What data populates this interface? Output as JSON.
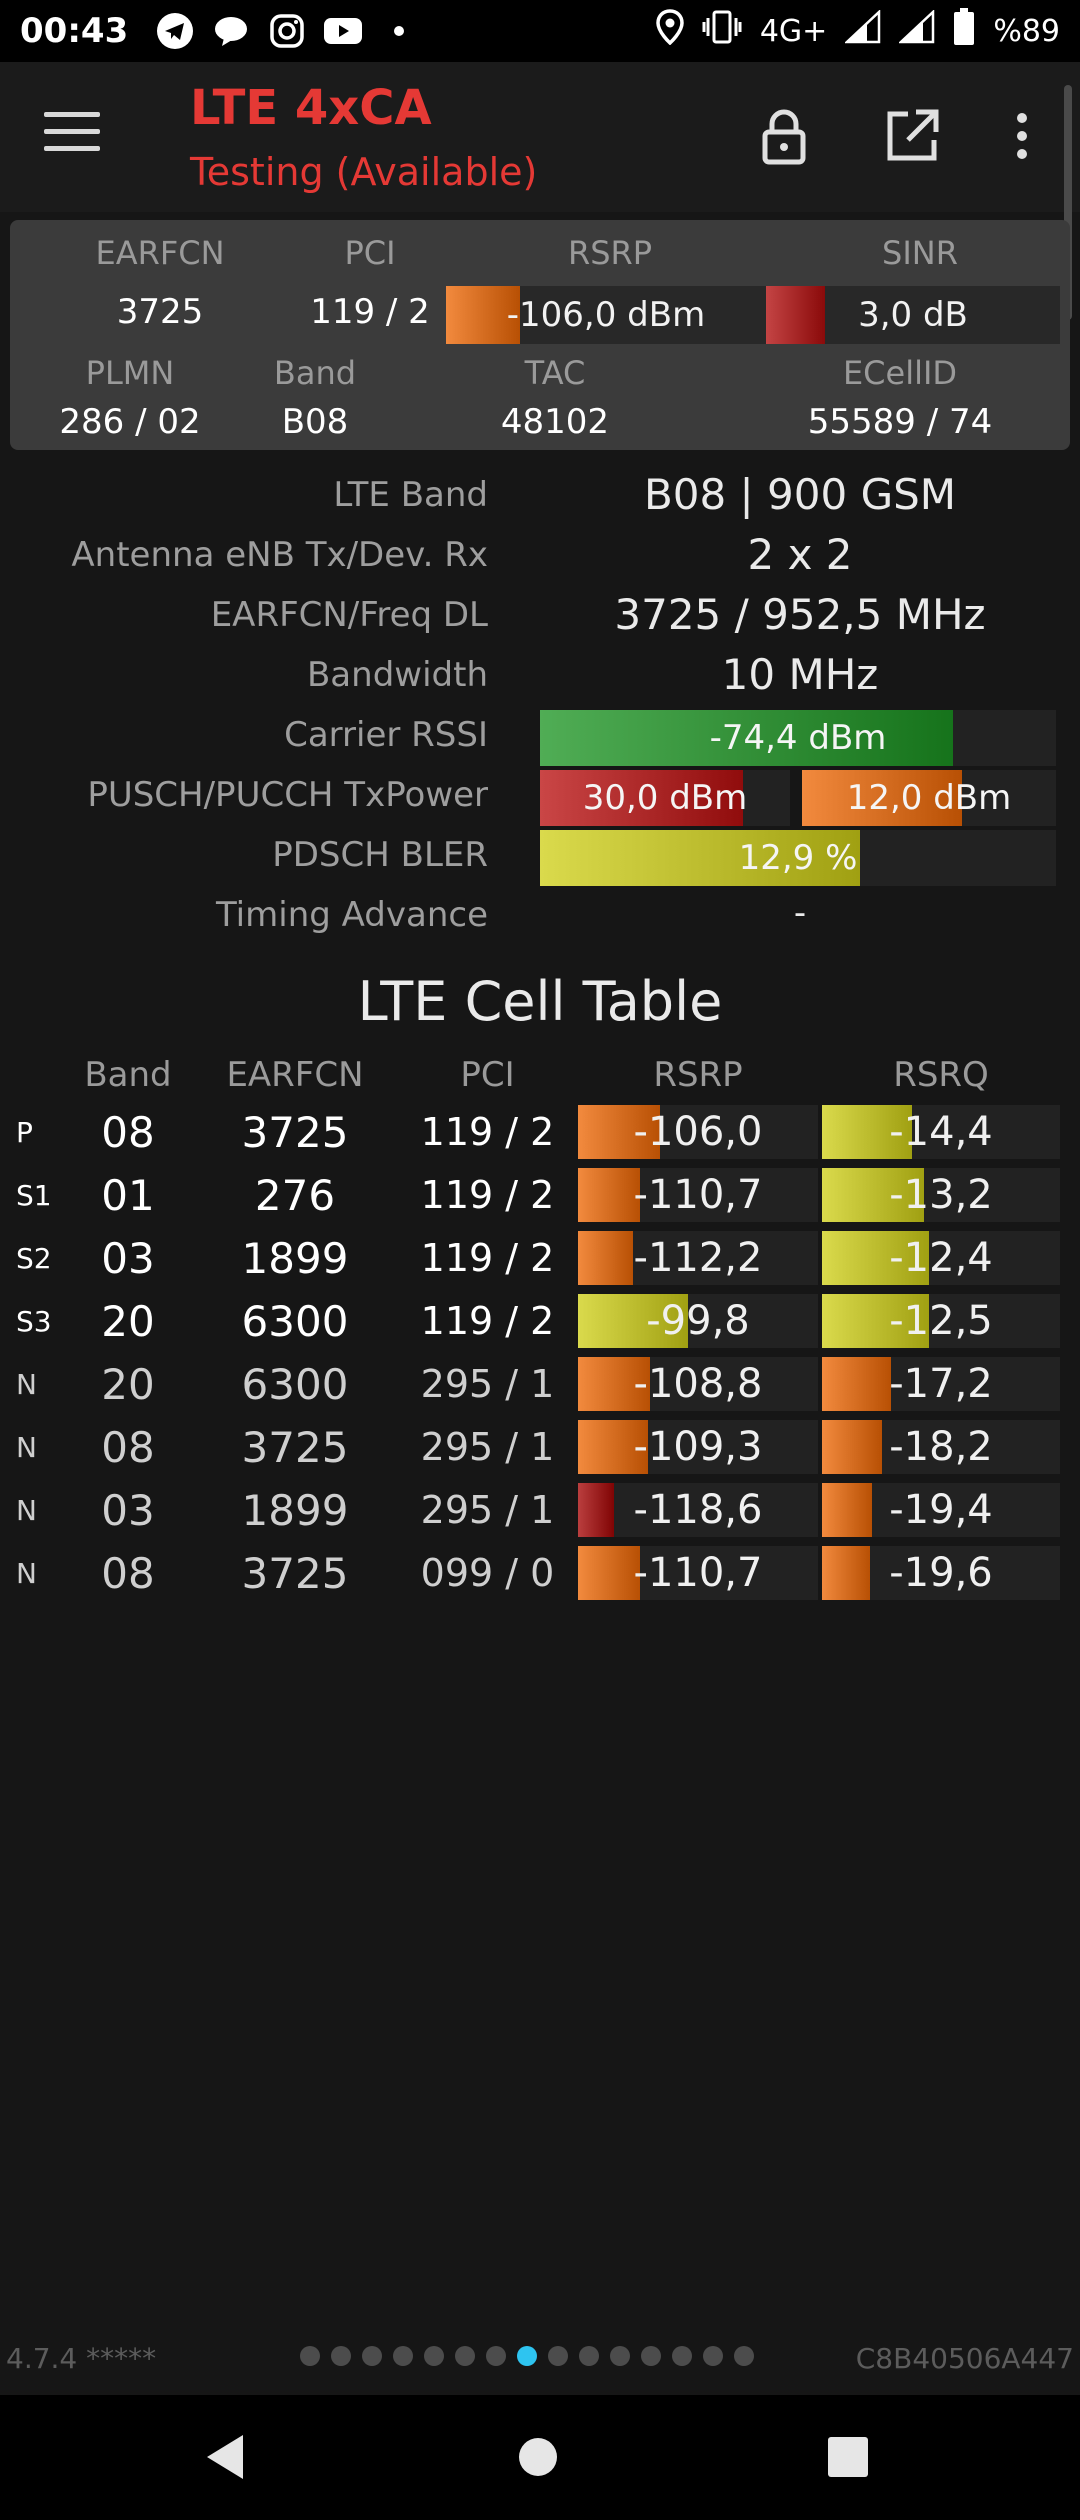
{
  "status_bar": {
    "time": "00:43",
    "network": "4G+",
    "battery": "%89",
    "left_icons": [
      "telegram-icon",
      "chat-bubble-icon",
      "instagram-icon",
      "youtube-icon",
      "dot-icon"
    ],
    "right_icons": [
      "location-icon",
      "vibrate-icon",
      "signal-icon",
      "signal-icon",
      "battery-icon"
    ]
  },
  "app_bar": {
    "title": "LTE 4xCA",
    "subtitle": "Testing (Available)",
    "title_color": "#e53935",
    "actions": [
      "lock-icon",
      "open-external-icon",
      "more-vert-icon"
    ]
  },
  "summary": {
    "labels": {
      "earfcn": "EARFCN",
      "pci": "PCI",
      "rsrp": "RSRP",
      "sinr": "SINR",
      "plmn": "PLMN",
      "band": "Band",
      "tac": "TAC",
      "ecellid": "ECellID"
    },
    "earfcn": "3725",
    "pci": "119 / 2",
    "rsrp": {
      "text": "-106,0 dBm",
      "level": 0.23,
      "color": "#e0782c"
    },
    "sinr": {
      "text": "3,0 dB",
      "level": 0.2,
      "color": "#b23232"
    },
    "plmn": "286 / 02",
    "band": "B08",
    "tac": "48102",
    "ecellid": "55589 / 74"
  },
  "details": {
    "lte_band": {
      "label": "LTE Band",
      "value": "B08 | 900 GSM"
    },
    "antenna": {
      "label": "Antenna eNB Tx/Dev. Rx",
      "value": "2 x 2"
    },
    "earfcn_freq": {
      "label": "EARFCN/Freq DL",
      "value": "3725 / 952,5 MHz"
    },
    "bandwidth": {
      "label": "Bandwidth",
      "value": "10 MHz"
    },
    "carrier_rssi": {
      "label": "Carrier RSSI",
      "text": "-74,4 dBm",
      "level": 0.8,
      "color": "#3e9b43"
    },
    "tx_power": {
      "label": "PUSCH/PUCCH TxPower",
      "pusch": {
        "text": "30,0 dBm",
        "level": 0.81,
        "color": "#b83434"
      },
      "pucch": {
        "text": "12,0 dBm",
        "level": 0.63,
        "color": "#e0782c"
      }
    },
    "bler": {
      "label": "PDSCH BLER",
      "text": "12,9 %",
      "level": 0.62,
      "color": "#c8c83a"
    },
    "timing_advance": {
      "label": "Timing Advance",
      "value": "-"
    }
  },
  "cell_table": {
    "title": "LTE Cell Table",
    "headers": {
      "band": "Band",
      "earfcn": "EARFCN",
      "pci": "PCI",
      "rsrp": "RSRP",
      "rsrq": "RSRQ"
    },
    "rows": [
      {
        "type": "P",
        "band": "08",
        "earfcn": "3725",
        "pci": "119 / 2",
        "rsrp": "-106,0",
        "rsrp_level": 0.34,
        "rsrp_color": "#e0782c",
        "rsrq": "-14,4",
        "rsrq_level": 0.38,
        "rsrq_color": "#c8c83a",
        "neighbor": false
      },
      {
        "type": "S1",
        "band": "01",
        "earfcn": "276",
        "pci": "119 / 2",
        "rsrp": "-110,7",
        "rsrp_level": 0.26,
        "rsrp_color": "#e0782c",
        "rsrq": "-13,2",
        "rsrq_level": 0.43,
        "rsrq_color": "#c8c83a",
        "neighbor": false
      },
      {
        "type": "S2",
        "band": "03",
        "earfcn": "1899",
        "pci": "119 / 2",
        "rsrp": "-112,2",
        "rsrp_level": 0.23,
        "rsrp_color": "#e0782c",
        "rsrq": "-12,4",
        "rsrq_level": 0.45,
        "rsrq_color": "#c8c83a",
        "neighbor": false
      },
      {
        "type": "S3",
        "band": "20",
        "earfcn": "6300",
        "pci": "119 / 2",
        "rsrp": "-99,8",
        "rsrp_level": 0.46,
        "rsrp_color": "#c8c83a",
        "rsrq": "-12,5",
        "rsrq_level": 0.45,
        "rsrq_color": "#c8c83a",
        "neighbor": false
      },
      {
        "type": "N",
        "band": "20",
        "earfcn": "6300",
        "pci": "295 / 1",
        "rsrp": "-108,8",
        "rsrp_level": 0.3,
        "rsrp_color": "#e0782c",
        "rsrq": "-17,2",
        "rsrq_level": 0.29,
        "rsrq_color": "#e0782c",
        "neighbor": true
      },
      {
        "type": "N",
        "band": "08",
        "earfcn": "3725",
        "pci": "295 / 1",
        "rsrp": "-109,3",
        "rsrp_level": 0.29,
        "rsrp_color": "#e0782c",
        "rsrq": "-18,2",
        "rsrq_level": 0.25,
        "rsrq_color": "#e0782c",
        "neighbor": true
      },
      {
        "type": "N",
        "band": "03",
        "earfcn": "1899",
        "pci": "295 / 1",
        "rsrp": "-118,6",
        "rsrp_level": 0.15,
        "rsrp_color": "#a82c2c",
        "rsrq": "-19,4",
        "rsrq_level": 0.21,
        "rsrq_color": "#e0782c",
        "neighbor": true
      },
      {
        "type": "N",
        "band": "08",
        "earfcn": "3725",
        "pci": "099 / 0",
        "rsrp": "-110,7",
        "rsrp_level": 0.26,
        "rsrp_color": "#e0782c",
        "rsrq": "-19,6",
        "rsrq_level": 0.2,
        "rsrq_color": "#e0782c",
        "neighbor": true
      }
    ]
  },
  "footer": {
    "version": "4.7.4 *****",
    "device_id": "C8B40506A447",
    "page_count": 15,
    "active_page": 7
  },
  "nav_bar": {
    "buttons": [
      "back-icon",
      "home-icon",
      "recents-icon"
    ]
  }
}
